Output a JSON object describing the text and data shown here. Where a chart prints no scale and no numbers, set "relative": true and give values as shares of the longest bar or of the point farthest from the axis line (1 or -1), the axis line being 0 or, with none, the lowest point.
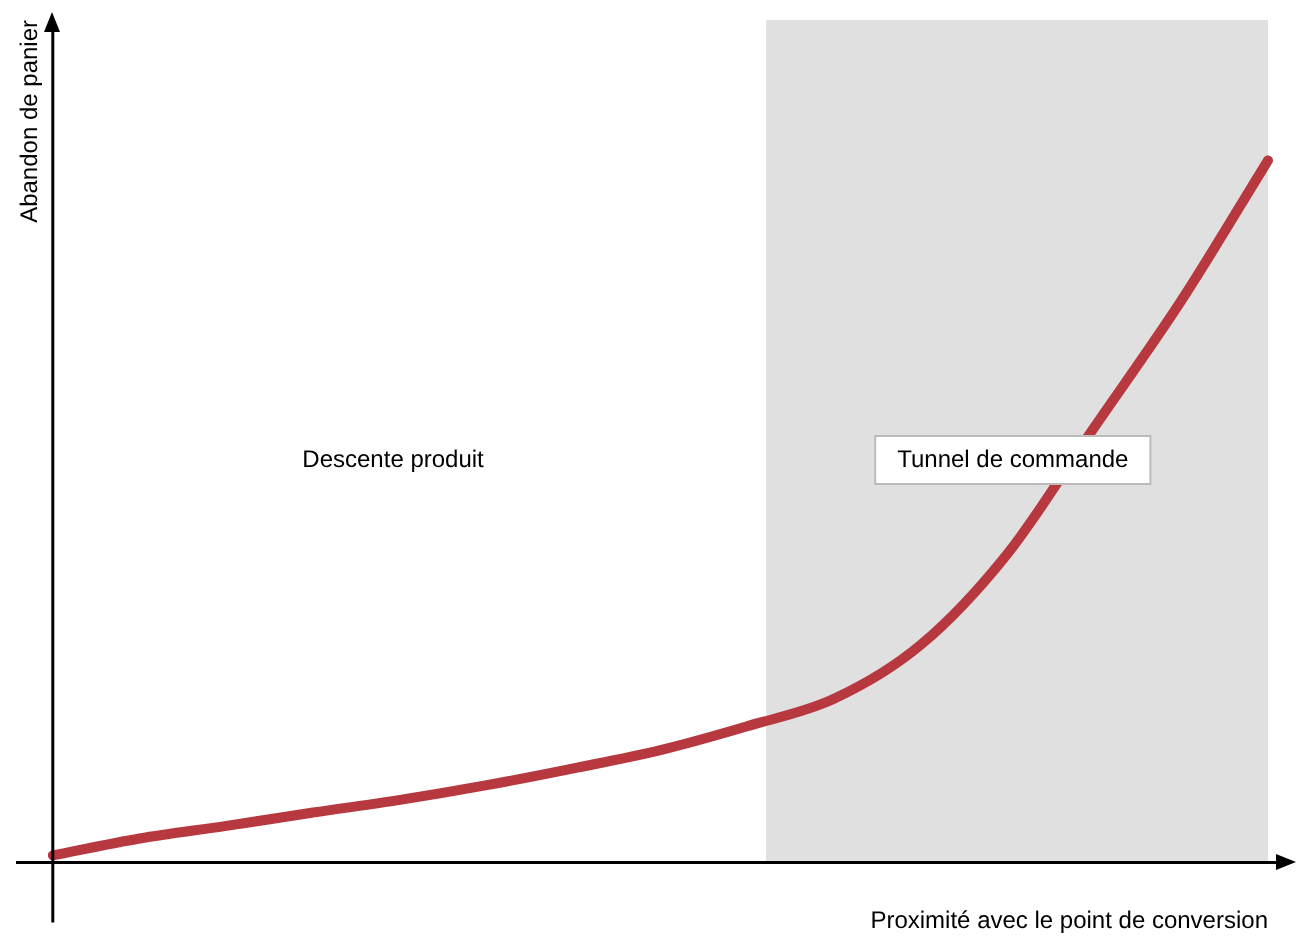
{
  "chart_data": {
    "type": "line",
    "relative": true,
    "xlabel": "Proximité avec le point de conversion",
    "ylabel": "Abandon de panier",
    "categories": [
      null,
      null,
      null,
      null,
      null,
      null,
      null,
      null,
      null,
      null,
      null,
      null,
      null,
      null,
      null
    ],
    "series": [
      {
        "color": "#b8383f",
        "values": [
          0.01,
          0.034,
          0.052,
          0.071,
          0.089,
          0.11,
          0.134,
          0.16,
          0.194,
          0.233,
          0.31,
          0.44,
          0.62,
          0.8,
          1
        ]
      }
    ],
    "annotations": [
      "Descente produit",
      "Tunnel de commande"
    ],
    "marker": "none",
    "line_style": "solid",
    "grid": false,
    "legend": false
  }
}
